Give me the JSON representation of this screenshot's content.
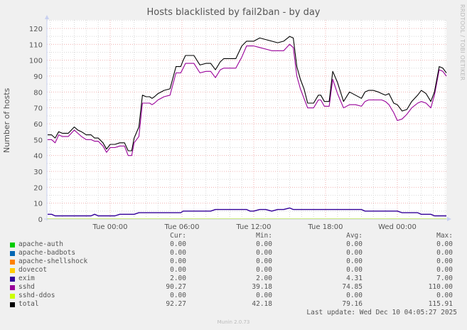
{
  "title": "Hosts blacklisted by fail2ban - by day",
  "watermark": "RRDTOOL / TOBI OETIKER",
  "ylabel": "Number of hosts",
  "footer": "Munin 2.0.73",
  "last_update": "Last update: Wed Dec 10 04:05:27 2025",
  "legend_headers": {
    "cur": "Cur:",
    "min": "Min:",
    "avg": "Avg:",
    "max": "Max:"
  },
  "legend": [
    {
      "name": "apache-auth",
      "color": "#00cc00",
      "cur": "0.00",
      "min": "0.00",
      "avg": "0.00",
      "max": "0.00"
    },
    {
      "name": "apache-badbots",
      "color": "#0066b3",
      "cur": "0.00",
      "min": "0.00",
      "avg": "0.00",
      "max": "0.00"
    },
    {
      "name": "apache-shellshock",
      "color": "#ff8000",
      "cur": "0.00",
      "min": "0.00",
      "avg": "0.00",
      "max": "0.00"
    },
    {
      "name": "dovecot",
      "color": "#ffcc00",
      "cur": "0.00",
      "min": "0.00",
      "avg": "0.00",
      "max": "0.00"
    },
    {
      "name": "exim",
      "color": "#330099",
      "cur": "2.00",
      "min": "2.00",
      "avg": "4.31",
      "max": "7.00"
    },
    {
      "name": "sshd",
      "color": "#990099",
      "cur": "90.27",
      "min": "39.18",
      "avg": "74.85",
      "max": "110.00"
    },
    {
      "name": "sshd-ddos",
      "color": "#ccff00",
      "cur": "0.00",
      "min": "0.00",
      "avg": "0.00",
      "max": "0.00"
    },
    {
      "name": "total",
      "color": "#000000",
      "cur": "92.27",
      "min": "42.18",
      "avg": "79.16",
      "max": "115.91"
    }
  ],
  "chart_data": {
    "type": "line",
    "title": "Hosts blacklisted by fail2ban - by day",
    "xlabel": "",
    "ylabel": "Number of hosts",
    "ylim": [
      0,
      120
    ],
    "yticks": [
      0,
      10,
      20,
      30,
      40,
      50,
      60,
      70,
      80,
      90,
      100,
      110,
      120
    ],
    "xticks": [
      "Tue 00:00",
      "Tue 06:00",
      "Tue 12:00",
      "Tue 18:00",
      "Wed 00:00"
    ],
    "grid": true,
    "legend_position": "bottom",
    "x_hours": [
      -5.3,
      -4.9,
      -4.6,
      -4.3,
      -4.0,
      -3.5,
      -3.0,
      -2.7,
      -2.4,
      -2.0,
      -1.6,
      -1.3,
      -1.0,
      -0.6,
      -0.3,
      0.0,
      0.4,
      0.8,
      1.2,
      1.5,
      1.8,
      2.0,
      2.4,
      2.7,
      3.0,
      3.3,
      3.5,
      3.7,
      4.0,
      4.5,
      5.0,
      5.5,
      5.9,
      6.1,
      6.3,
      7.0,
      7.5,
      8.0,
      8.4,
      8.8,
      9.2,
      9.5,
      10.0,
      10.5,
      11.0,
      11.4,
      11.7,
      12.0,
      12.5,
      13.0,
      13.5,
      14.0,
      14.5,
      15.0,
      15.3,
      15.6,
      15.9,
      16.2,
      16.5,
      17.0,
      17.4,
      17.6,
      17.9,
      18.3,
      18.6,
      19.0,
      19.5,
      20.0,
      20.5,
      21.0,
      21.3,
      21.6,
      22.0,
      22.4,
      22.7,
      23.0,
      23.3,
      23.7,
      24.0,
      24.4,
      24.8,
      25.2,
      25.7,
      26.0,
      26.4,
      26.8,
      27.1,
      27.5,
      27.8,
      28.1
    ],
    "series": [
      {
        "name": "total",
        "color": "#000000",
        "values": [
          53,
          53,
          51,
          55,
          54,
          54,
          58,
          56,
          55,
          53,
          53,
          51,
          51,
          48,
          44,
          47,
          47,
          48,
          48,
          43,
          43,
          51,
          58,
          78,
          77,
          77,
          76,
          77,
          79,
          81,
          82,
          96,
          96,
          100,
          103,
          103,
          97,
          98,
          98,
          94,
          99,
          101,
          101,
          101,
          109,
          112,
          112,
          112,
          114,
          113,
          112,
          111,
          112,
          115,
          114,
          96,
          88,
          82,
          73,
          73,
          78,
          78,
          74,
          74,
          93,
          86,
          74,
          80,
          78,
          76,
          80,
          81,
          81,
          80,
          79,
          78,
          79,
          73,
          72,
          68,
          69,
          74,
          78,
          81,
          79,
          74,
          80,
          96,
          95,
          92
        ]
      },
      {
        "name": "sshd",
        "color": "#990099",
        "values": [
          50,
          50,
          48,
          53,
          52,
          52,
          56,
          54,
          52,
          50,
          50,
          49,
          49,
          46,
          42,
          45,
          45,
          46,
          46,
          40,
          40,
          48,
          52,
          73,
          73,
          73,
          72,
          73,
          75,
          77,
          78,
          92,
          92,
          95,
          98,
          98,
          92,
          93,
          93,
          89,
          94,
          95,
          95,
          95,
          102,
          109,
          109,
          109,
          108,
          107,
          106,
          106,
          106,
          110,
          108,
          90,
          82,
          76,
          70,
          70,
          75,
          75,
          71,
          71,
          88,
          79,
          70,
          72,
          72,
          71,
          74,
          75,
          75,
          75,
          75,
          74,
          72,
          67,
          62,
          63,
          66,
          70,
          73,
          74,
          73,
          70,
          78,
          94,
          93,
          90
        ]
      },
      {
        "name": "exim",
        "color": "#330099",
        "values": [
          3,
          3,
          2,
          2,
          2,
          2,
          2,
          2,
          2,
          2,
          2,
          3,
          2,
          2,
          2,
          2,
          2,
          3,
          3,
          3,
          3,
          3,
          4,
          4,
          4,
          4,
          4,
          4,
          4,
          4,
          4,
          4,
          4,
          5,
          5,
          5,
          5,
          5,
          5,
          6,
          6,
          6,
          6,
          6,
          6,
          6,
          5,
          5,
          6,
          6,
          5,
          6,
          6,
          7,
          6,
          6,
          6,
          6,
          6,
          6,
          6,
          6,
          6,
          6,
          6,
          6,
          6,
          6,
          6,
          6,
          5,
          5,
          5,
          5,
          5,
          5,
          5,
          5,
          5,
          4,
          4,
          4,
          4,
          3,
          3,
          3,
          2,
          2,
          2,
          2
        ]
      },
      {
        "name": "apache-auth",
        "color": "#00cc00",
        "values": "all 0"
      },
      {
        "name": "apache-badbots",
        "color": "#0066b3",
        "values": "all 0"
      },
      {
        "name": "apache-shellshock",
        "color": "#ff8000",
        "values": "all 0"
      },
      {
        "name": "dovecot",
        "color": "#ffcc00",
        "values": "all 0"
      },
      {
        "name": "sshd-ddos",
        "color": "#ccff00",
        "values": "all 0"
      }
    ]
  }
}
